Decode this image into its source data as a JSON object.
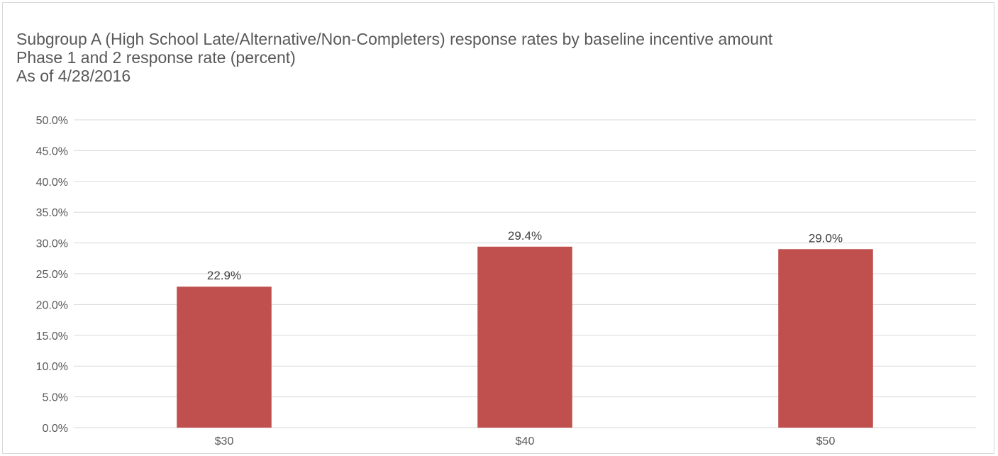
{
  "chart_data": {
    "type": "bar",
    "title_lines": [
      "Subgroup A (High School Late/Alternative/Non-Completers) response rates by baseline incentive amount",
      "Phase 1 and 2 response rate (percent)",
      "As of 4/28/2016"
    ],
    "categories": [
      "$30",
      "$40",
      "$50"
    ],
    "values": [
      22.9,
      29.4,
      29.0
    ],
    "data_labels": [
      "22.9%",
      "29.4%",
      "29.0%"
    ],
    "ylim": [
      0,
      50
    ],
    "yticks": [
      0,
      5,
      10,
      15,
      20,
      25,
      30,
      35,
      40,
      45,
      50
    ],
    "ytick_labels": [
      "0.0%",
      "5.0%",
      "10.0%",
      "15.0%",
      "20.0%",
      "25.0%",
      "30.0%",
      "35.0%",
      "40.0%",
      "45.0%",
      "50.0%"
    ],
    "grid": true,
    "legend": "none",
    "bar_color": "#c0504d",
    "grid_color": "#d9d9d9"
  }
}
